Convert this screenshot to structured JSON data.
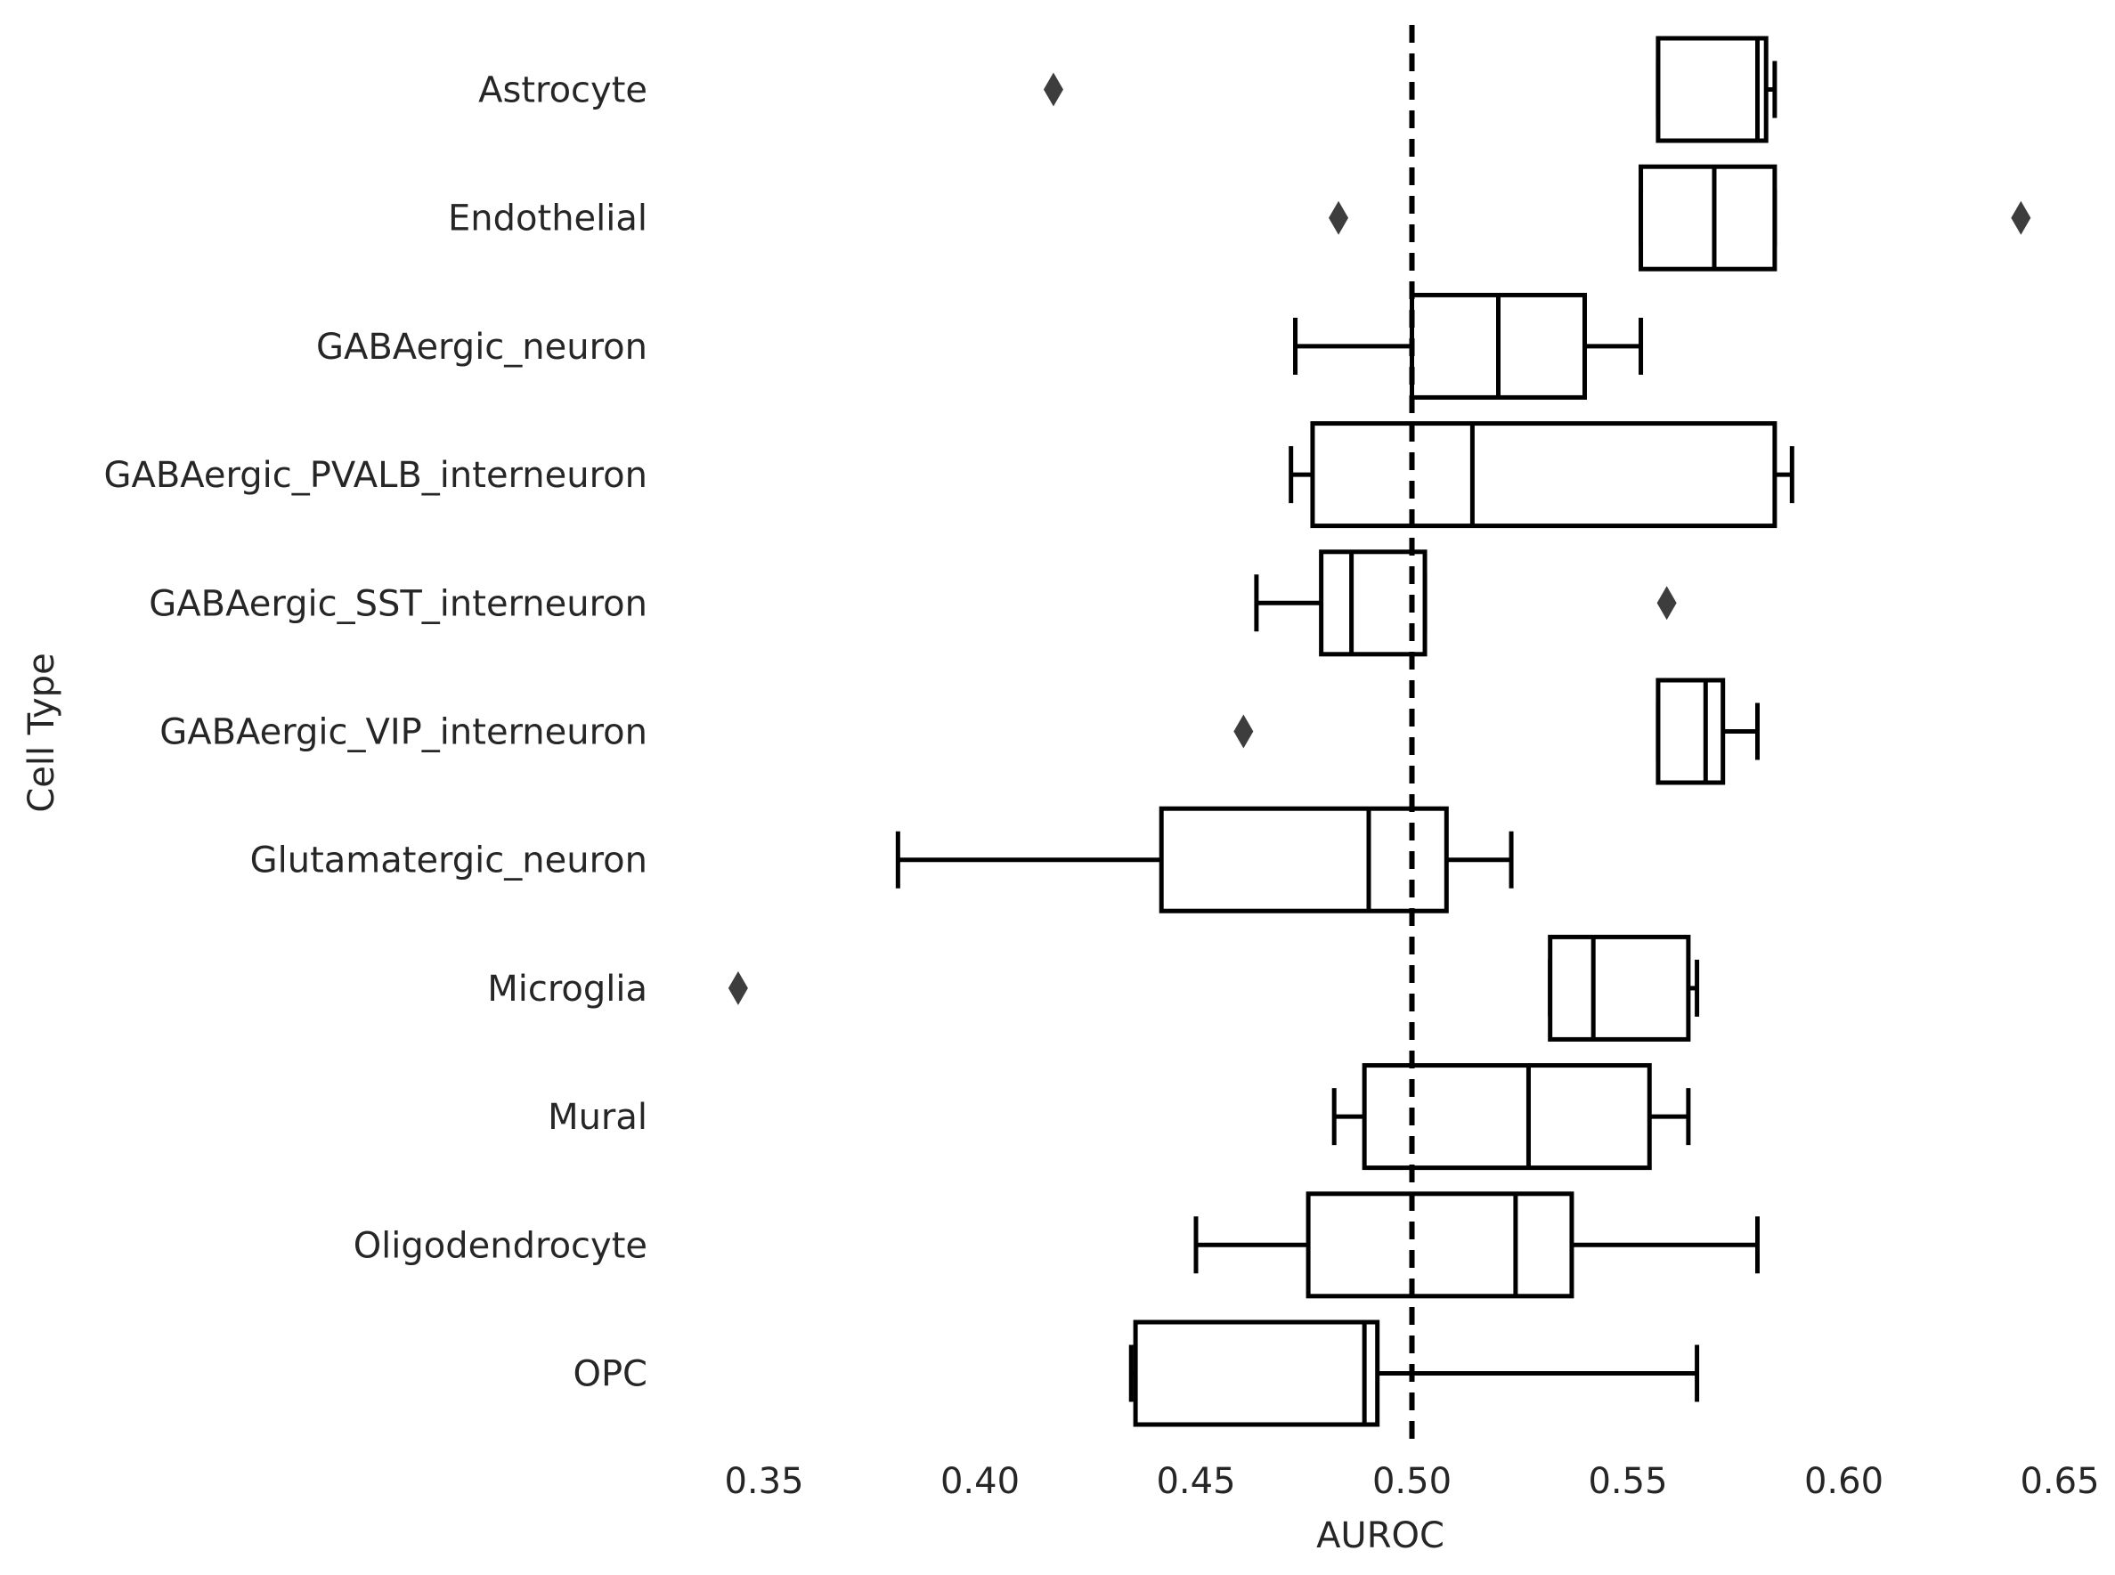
{
  "chart_data": {
    "type": "box",
    "orientation": "horizontal",
    "xlabel": "AUROC",
    "ylabel": "Cell Type",
    "xlim": [
      0.35,
      0.65
    ],
    "xticks": [
      "0.35",
      "0.40",
      "0.45",
      "0.50",
      "0.55",
      "0.60",
      "0.65"
    ],
    "reference_line": {
      "x": 0.5,
      "style": "dashed"
    },
    "grid": false,
    "colors": {
      "box_edge": "#000000",
      "outlier": "#3d3d3d",
      "text": "#262626"
    },
    "categories": [
      {
        "name": "Astrocyte",
        "whisker_low": 0.557,
        "q1": 0.557,
        "median": 0.58,
        "q3": 0.582,
        "whisker_high": 0.584,
        "outliers": [
          0.417
        ]
      },
      {
        "name": "Endothelial",
        "whisker_low": 0.553,
        "q1": 0.553,
        "median": 0.57,
        "q3": 0.584,
        "whisker_high": 0.584,
        "outliers": [
          0.483,
          0.641
        ]
      },
      {
        "name": "GABAergic_neuron",
        "whisker_low": 0.473,
        "q1": 0.5,
        "median": 0.52,
        "q3": 0.54,
        "whisker_high": 0.553,
        "outliers": []
      },
      {
        "name": "GABAergic_PVALB_interneuron",
        "whisker_low": 0.472,
        "q1": 0.477,
        "median": 0.514,
        "q3": 0.584,
        "whisker_high": 0.588,
        "outliers": []
      },
      {
        "name": "GABAergic_SST_interneuron",
        "whisker_low": 0.464,
        "q1": 0.479,
        "median": 0.486,
        "q3": 0.503,
        "whisker_high": 0.503,
        "outliers": [
          0.559
        ]
      },
      {
        "name": "GABAergic_VIP_interneuron",
        "whisker_low": 0.557,
        "q1": 0.557,
        "median": 0.568,
        "q3": 0.572,
        "whisker_high": 0.58,
        "outliers": [
          0.461
        ]
      },
      {
        "name": "Glutamatergic_neuron",
        "whisker_low": 0.381,
        "q1": 0.442,
        "median": 0.49,
        "q3": 0.508,
        "whisker_high": 0.523,
        "outliers": []
      },
      {
        "name": "Microglia",
        "whisker_low": 0.532,
        "q1": 0.532,
        "median": 0.542,
        "q3": 0.564,
        "whisker_high": 0.566,
        "outliers": [
          0.344
        ]
      },
      {
        "name": "Mural",
        "whisker_low": 0.482,
        "q1": 0.489,
        "median": 0.527,
        "q3": 0.555,
        "whisker_high": 0.564,
        "outliers": []
      },
      {
        "name": "Oligodendrocyte",
        "whisker_low": 0.45,
        "q1": 0.476,
        "median": 0.524,
        "q3": 0.537,
        "whisker_high": 0.58,
        "outliers": []
      },
      {
        "name": "OPC",
        "whisker_low": 0.435,
        "q1": 0.436,
        "median": 0.489,
        "q3": 0.492,
        "whisker_high": 0.566,
        "outliers": []
      }
    ]
  }
}
